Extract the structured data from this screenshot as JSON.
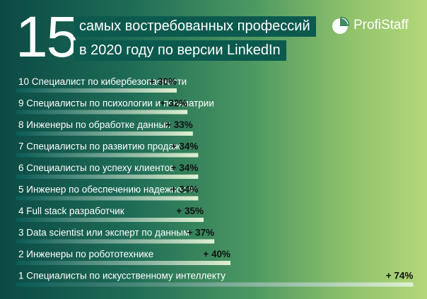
{
  "header": {
    "number": "15",
    "title_line1": "самых востребованных профессий",
    "title_line2": "в 2020 году по версии LinkedIn"
  },
  "brand": {
    "name": "ProfiStaff",
    "icon": "pie-logo-icon"
  },
  "colors": {
    "bar_start": "#0a5a55",
    "bar_end": "#dff0d2",
    "text": "#ffffff",
    "value_text": "#111111"
  },
  "chart_data": {
    "type": "bar",
    "orientation": "horizontal",
    "categories": [
      "10 Специалист по кибербезопасности",
      "9 Специалисты по психологии и психиатрии",
      "8 Инженеры по обработке данных",
      "7 Специалисты по развитию продаж",
      "6 Специалисты по успеху клиентов",
      "5 Инженер по обеспечению надежности",
      "4 Full stack разработчик",
      "3 Data scientist или эксперт по данным",
      "2 Инженеры по робототехнике",
      "1 Специалисты по искусственному интеллекту"
    ],
    "values": [
      30,
      32,
      33,
      34,
      34,
      34,
      35,
      37,
      40,
      74
    ],
    "value_labels": [
      "+ 30%",
      "+ 32%",
      "+ 33%",
      "+ 34%",
      "+ 34%",
      "+ 34%",
      "+ 35%",
      "+ 37%",
      "+ 40%",
      "+ 74%"
    ],
    "xlabel": "",
    "ylabel": "",
    "grid": false,
    "legend": "none"
  }
}
